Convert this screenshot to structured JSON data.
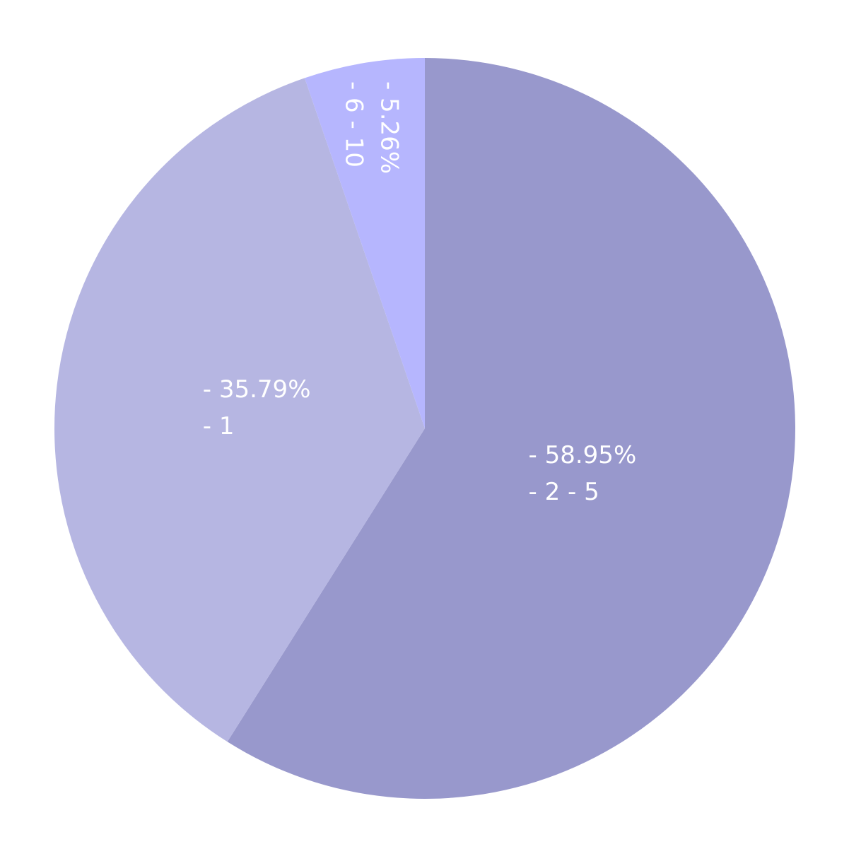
{
  "chart_data": {
    "type": "pie",
    "categories": [
      "- 2 - 5",
      "- 1",
      "- 6 - 10"
    ],
    "values": [
      58.95,
      35.79,
      5.26
    ],
    "value_labels": [
      "- 58.95%",
      "- 35.79%",
      "- 5.26%"
    ],
    "colors": [
      "#9898cc",
      "#b6b6e2",
      "#b6b6fe"
    ]
  }
}
